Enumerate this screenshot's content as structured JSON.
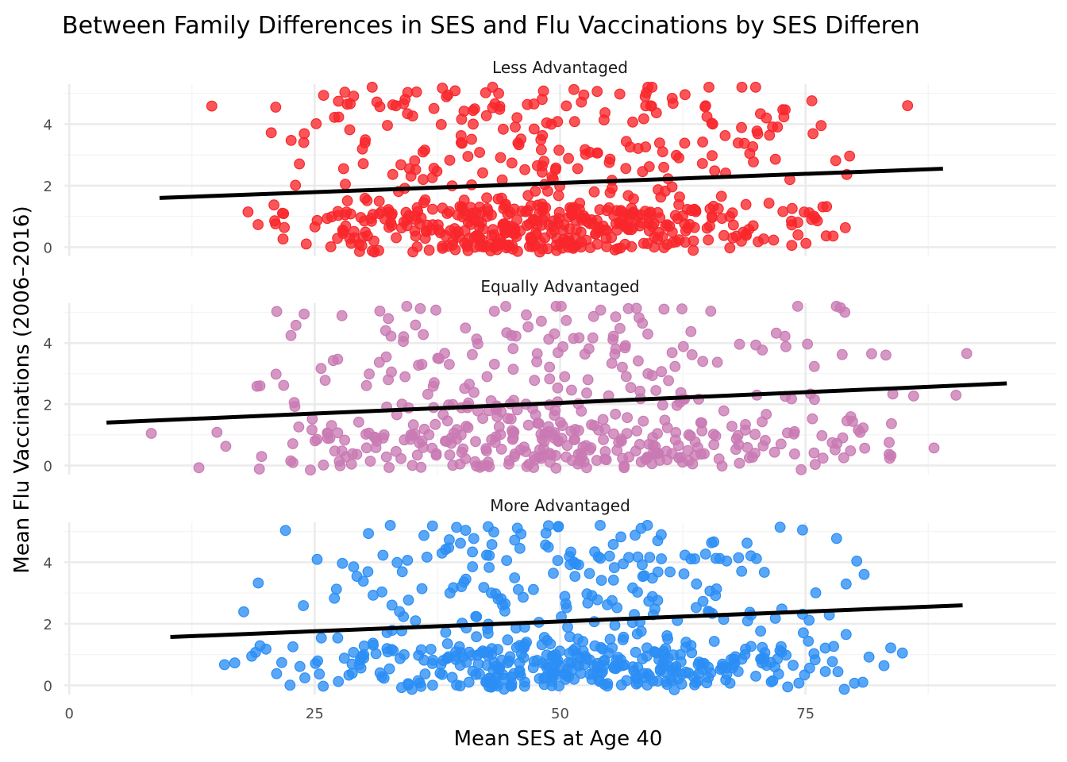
{
  "chart_data": {
    "type": "scatter",
    "title": "Between Family Differences in SES and Flu Vaccinations by SES Differen",
    "xlabel": "Mean SES at Age 40",
    "ylabel": "Mean Flu Vaccinations (2006–2016)",
    "xlim": [
      -0.5,
      100.5
    ],
    "ylim": [
      -0.3,
      5.3
    ],
    "x_ticks": [
      0,
      25,
      50,
      75
    ],
    "y_ticks": [
      0,
      2,
      4
    ],
    "grid": true,
    "legend": "none",
    "panels": [
      {
        "name": "Less Advantaged",
        "color": "#f8272b",
        "n_points": 620,
        "x_range": [
          9,
          89
        ],
        "y_range": [
          -0.2,
          5.2
        ],
        "fit": {
          "x": [
            9.2,
            89.0
          ],
          "y": [
            1.6,
            2.55
          ]
        }
      },
      {
        "name": "Equally Advantaged",
        "color": "#c97ab3",
        "n_points": 470,
        "x_range": [
          4,
          95
        ],
        "y_range": [
          -0.2,
          5.2
        ],
        "fit": {
          "x": [
            3.8,
            95.5
          ],
          "y": [
            1.4,
            2.68
          ]
        }
      },
      {
        "name": "More Advantaged",
        "color": "#2b8ef5",
        "n_points": 560,
        "x_range": [
          10,
          91
        ],
        "y_range": [
          -0.2,
          5.2
        ],
        "fit": {
          "x": [
            10.3,
            91.0
          ],
          "y": [
            1.57,
            2.6
          ]
        }
      }
    ]
  }
}
